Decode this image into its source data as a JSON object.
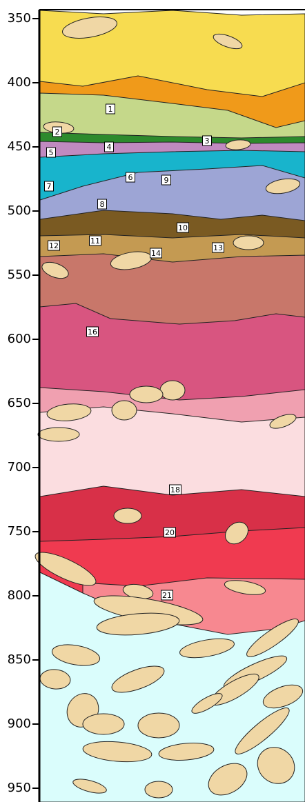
{
  "axis": {
    "ticks": [
      350,
      400,
      450,
      500,
      550,
      600,
      650,
      700,
      750,
      800,
      850,
      900,
      950
    ]
  },
  "layers": [
    {
      "label": "1"
    },
    {
      "label": "2"
    },
    {
      "label": "3"
    },
    {
      "label": "4"
    },
    {
      "label": "5"
    },
    {
      "label": "6"
    },
    {
      "label": "7"
    },
    {
      "label": "8"
    },
    {
      "label": "9"
    },
    {
      "label": "10"
    },
    {
      "label": "11"
    },
    {
      "label": "12"
    },
    {
      "label": "13"
    },
    {
      "label": "14"
    },
    {
      "label": "16"
    },
    {
      "label": "18"
    },
    {
      "label": "20"
    },
    {
      "label": "21"
    }
  ]
}
